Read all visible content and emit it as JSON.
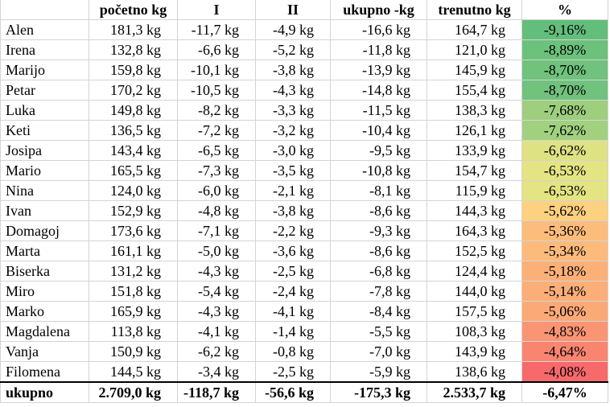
{
  "table": {
    "header": [
      "početno kg",
      "I",
      "II",
      "ukupno -kg",
      "trenutno kg",
      "%"
    ],
    "rows": [
      [
        "Alen",
        "181,3 kg",
        "-11,7 kg",
        "-4,9 kg",
        "-16,6 kg",
        "164,7 kg",
        "-9,16%"
      ],
      [
        "Irena",
        "132,8 kg",
        "-6,6 kg",
        "-5,2 kg",
        "-11,8 kg",
        "121,0 kg",
        "-8,89%"
      ],
      [
        "Marijo",
        "159,8 kg",
        "-10,1 kg",
        "-3,8 kg",
        "-13,9 kg",
        "145,9 kg",
        "-8,70%"
      ],
      [
        "Petar",
        "170,2 kg",
        "-10,5 kg",
        "-4,3 kg",
        "-14,8 kg",
        "155,4 kg",
        "-8,70%"
      ],
      [
        "Luka",
        "149,8 kg",
        "-8,2 kg",
        "-3,3 kg",
        "-11,5 kg",
        "138,3 kg",
        "-7,68%"
      ],
      [
        "Keti",
        "136,5 kg",
        "-7,2 kg",
        "-3,2 kg",
        "-10,4 kg",
        "126,1 kg",
        "-7,62%"
      ],
      [
        "Josipa",
        "143,4 kg",
        "-6,5 kg",
        "-3,0 kg",
        "-9,5 kg",
        "133,9 kg",
        "-6,62%"
      ],
      [
        "Mario",
        "165,5 kg",
        "-7,3 kg",
        "-3,5 kg",
        "-10,8 kg",
        "154,7 kg",
        "-6,53%"
      ],
      [
        "Nina",
        "124,0 kg",
        "-6,0 kg",
        "-2,1 kg",
        "-8,1 kg",
        "115,9 kg",
        "-6,53%"
      ],
      [
        "Ivan",
        "152,9 kg",
        "-4,8 kg",
        "-3,8 kg",
        "-8,6 kg",
        "144,3 kg",
        "-5,62%"
      ],
      [
        "Domagoj",
        "173,6 kg",
        "-7,1 kg",
        "-2,2 kg",
        "-9,3 kg",
        "164,3 kg",
        "-5,36%"
      ],
      [
        "Marta",
        "161,1 kg",
        "-5,0 kg",
        "-3,6 kg",
        "-8,6 kg",
        "152,5 kg",
        "-5,34%"
      ],
      [
        "Biserka",
        "131,2 kg",
        "-4,3 kg",
        "-2,5 kg",
        "-6,8 kg",
        "124,4 kg",
        "-5,18%"
      ],
      [
        "Miro",
        "151,8 kg",
        "-5,4 kg",
        "-2,4 kg",
        "-7,8 kg",
        "144,0 kg",
        "-5,14%"
      ],
      [
        "Marko",
        "165,9 kg",
        "-4,3 kg",
        "-4,1 kg",
        "-8,4 kg",
        "157,5 kg",
        "-5,06%"
      ],
      [
        "Magdalena",
        "113,8 kg",
        "-4,1 kg",
        "-1,4 kg",
        "-5,5 kg",
        "108,3 kg",
        "-4,83%"
      ],
      [
        "Vanja",
        "150,9 kg",
        "-6,2 kg",
        "-0,8 kg",
        "-7,0 kg",
        "143,9 kg",
        "-4,64%"
      ],
      [
        "Filomena",
        "144,5 kg",
        "-3,4 kg",
        "-2,5 kg",
        "-5,9 kg",
        "138,6 kg",
        "-4,08%"
      ]
    ],
    "percent_colors": [
      "#63be7b",
      "#6cc17b",
      "#70c27c",
      "#70c27c",
      "#9dcf7f",
      "#a1d17f",
      "#dfe283",
      "#e4e483",
      "#e4e483",
      "#fdd17f",
      "#fcbc7b",
      "#fcba7b",
      "#fbb078",
      "#fbae78",
      "#fba977",
      "#fa9573",
      "#f98570",
      "#f8696b"
    ],
    "total": [
      "ukupno",
      "2.709,0 kg",
      "-118,7 kg",
      "-56,6 kg",
      "-175,3 kg",
      "2.533,7 kg",
      "-6,47%"
    ]
  }
}
